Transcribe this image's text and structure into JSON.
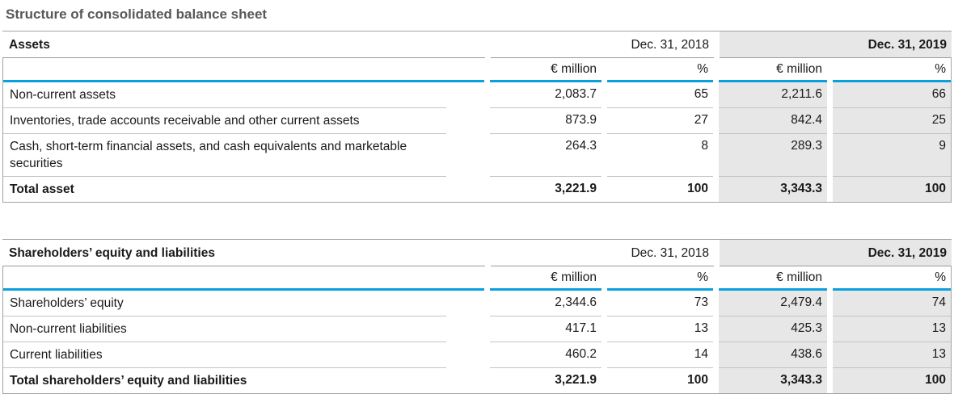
{
  "title": "Structure of consolidated balance sheet",
  "columns": {
    "date_2018": "Dec. 31, 2018",
    "date_2019": "Dec. 31, 2019",
    "unit_million": "€ million",
    "unit_percent": "%"
  },
  "colors": {
    "accent_blue": "#0aa0de",
    "highlight_column_bg": "#e8e7e7",
    "title_gray": "#58585a"
  },
  "tables": [
    {
      "header": "Assets",
      "rows": [
        {
          "label": "Non-current assets",
          "m2018": "2,083.7",
          "p2018": "65",
          "m2019": "2,211.6",
          "p2019": "66",
          "bold": false
        },
        {
          "label": "Inventories, trade accounts receivable and other current assets",
          "m2018": "873.9",
          "p2018": "27",
          "m2019": "842.4",
          "p2019": "25",
          "bold": false
        },
        {
          "label": "Cash, short-term financial assets, and cash equivalents and marketable securities",
          "m2018": "264.3",
          "p2018": "8",
          "m2019": "289.3",
          "p2019": "9",
          "bold": false
        },
        {
          "label": "Total asset",
          "m2018": "3,221.9",
          "p2018": "100",
          "m2019": "3,343.3",
          "p2019": "100",
          "bold": true
        }
      ]
    },
    {
      "header": "Shareholders’ equity and liabilities",
      "rows": [
        {
          "label": "Shareholders’ equity",
          "m2018": "2,344.6",
          "p2018": "73",
          "m2019": "2,479.4",
          "p2019": "74",
          "bold": false
        },
        {
          "label": "Non-current liabilities",
          "m2018": "417.1",
          "p2018": "13",
          "m2019": "425.3",
          "p2019": "13",
          "bold": false
        },
        {
          "label": "Current liabilities",
          "m2018": "460.2",
          "p2018": "14",
          "m2019": "438.6",
          "p2019": "13",
          "bold": false
        },
        {
          "label": "Total shareholders’ equity and liabilities",
          "m2018": "3,221.9",
          "p2018": "100",
          "m2019": "3,343.3",
          "p2019": "100",
          "bold": true
        }
      ]
    }
  ]
}
